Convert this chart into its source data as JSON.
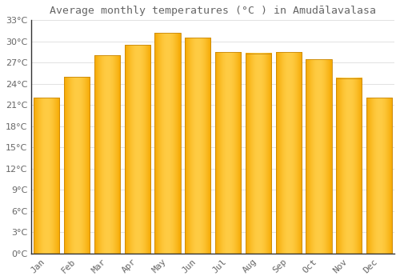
{
  "title": "Average monthly temperatures (°C ) in Amudālavalasa",
  "months": [
    "Jan",
    "Feb",
    "Mar",
    "Apr",
    "May",
    "Jun",
    "Jul",
    "Aug",
    "Sep",
    "Oct",
    "Nov",
    "Dec"
  ],
  "values": [
    22.0,
    25.0,
    28.0,
    29.5,
    31.2,
    30.5,
    28.5,
    28.3,
    28.5,
    27.5,
    24.8,
    22.0
  ],
  "bar_color_center": "#FFCC44",
  "bar_color_edge": "#F5A800",
  "background_color": "#FFFFFF",
  "grid_color": "#DDDDDD",
  "text_color": "#666666",
  "axis_color": "#333333",
  "ylim": [
    0,
    33
  ],
  "yticks": [
    0,
    3,
    6,
    9,
    12,
    15,
    18,
    21,
    24,
    27,
    30,
    33
  ],
  "title_fontsize": 9.5,
  "tick_fontsize": 8,
  "bar_width": 0.85
}
